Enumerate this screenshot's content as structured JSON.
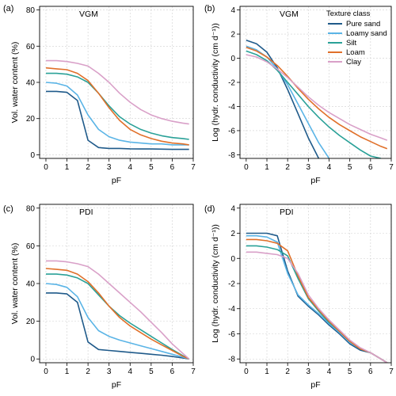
{
  "figure": {
    "legend_title": "Texture class",
    "legend_items": [
      {
        "label": "Pure sand",
        "color": "#1f5a8a"
      },
      {
        "label": "Loamy sand",
        "color": "#5ab4e6"
      },
      {
        "label": "Silt",
        "color": "#2aa198"
      },
      {
        "label": "Loam",
        "color": "#e0702a"
      },
      {
        "label": "Clay",
        "color": "#d9a0c8"
      }
    ]
  },
  "chart_data": [
    {
      "type": "line",
      "panel_label": "(a)",
      "title": "VGM",
      "xlabel": "pF",
      "ylabel": "Vol. water content (%)",
      "xlim": [
        -0.3,
        7.0
      ],
      "ylim": [
        -2,
        82
      ],
      "x_ticks": [
        0,
        1,
        2,
        3,
        4,
        5,
        6,
        7
      ],
      "y_ticks": [
        0,
        20,
        40,
        60,
        80
      ],
      "grid": true,
      "x": [
        0,
        0.5,
        1,
        1.5,
        2,
        2.5,
        3,
        3.5,
        4,
        4.5,
        5,
        5.5,
        6,
        6.5,
        6.8
      ],
      "series": [
        {
          "name": "Pure sand",
          "color": "#1f5a8a",
          "values": [
            35,
            35,
            34.5,
            30,
            8,
            4,
            3.5,
            3.5,
            3.3,
            3.2,
            3.2,
            3.1,
            3,
            3,
            3
          ]
        },
        {
          "name": "Loamy sand",
          "color": "#5ab4e6",
          "values": [
            40,
            39.5,
            38,
            33,
            22,
            14,
            10,
            8,
            7,
            6.5,
            6,
            6,
            5.5,
            5.5,
            5.5
          ]
        },
        {
          "name": "Silt",
          "color": "#2aa198",
          "values": [
            45,
            45,
            44.5,
            43,
            40,
            34,
            27,
            21,
            17,
            14,
            12,
            10.5,
            9.5,
            9,
            8.5
          ]
        },
        {
          "name": "Loam",
          "color": "#e0702a",
          "values": [
            48,
            47.5,
            47,
            45,
            41,
            34,
            26,
            19,
            14,
            11,
            9,
            7.5,
            6.5,
            6,
            5.5
          ]
        },
        {
          "name": "Clay",
          "color": "#d9a0c8",
          "values": [
            52,
            52,
            51.5,
            50.5,
            49,
            45,
            40,
            34,
            29,
            25,
            22,
            20,
            18.5,
            17.5,
            17
          ]
        }
      ]
    },
    {
      "type": "line",
      "panel_label": "(b)",
      "title": "VGM",
      "xlabel": "pF",
      "ylabel": "Log (hydr. conductivity (cm d⁻¹))",
      "xlim": [
        -0.3,
        7.0
      ],
      "ylim": [
        -8.3,
        4.3
      ],
      "x_ticks": [
        0,
        1,
        2,
        3,
        4,
        5,
        6,
        7
      ],
      "y_ticks": [
        4,
        2,
        0,
        -2,
        -4,
        -6,
        -8
      ],
      "grid": true,
      "x": [
        0,
        0.5,
        1,
        1.5,
        2,
        2.5,
        3,
        3.5,
        4,
        4.5,
        5,
        5.5,
        6,
        6.5,
        6.8
      ],
      "series": [
        {
          "name": "Pure sand",
          "color": "#1f5a8a",
          "values": [
            1.5,
            1.2,
            0.5,
            -0.8,
            -2.6,
            -4.6,
            -6.6,
            -8.3,
            null,
            null,
            null,
            null,
            null,
            null,
            null
          ]
        },
        {
          "name": "Loamy sand",
          "color": "#5ab4e6",
          "values": [
            1.0,
            0.7,
            0.1,
            -0.9,
            -2.2,
            -3.8,
            -5.4,
            -7.0,
            -8.3,
            null,
            null,
            null,
            null,
            null,
            null
          ]
        },
        {
          "name": "Silt",
          "color": "#2aa198",
          "values": [
            0.6,
            0.3,
            -0.2,
            -1.0,
            -2.0,
            -3.0,
            -4.0,
            -4.9,
            -5.7,
            -6.4,
            -7.0,
            -7.6,
            -8.1,
            -8.3,
            null
          ]
        },
        {
          "name": "Loam",
          "color": "#e0702a",
          "values": [
            0.9,
            0.6,
            0.1,
            -0.6,
            -1.5,
            -2.5,
            -3.4,
            -4.2,
            -4.9,
            -5.5,
            -6.0,
            -6.5,
            -6.9,
            -7.3,
            -7.5
          ]
        },
        {
          "name": "Clay",
          "color": "#d9a0c8",
          "values": [
            0.3,
            0.1,
            -0.3,
            -0.9,
            -1.6,
            -2.4,
            -3.2,
            -3.9,
            -4.5,
            -5.0,
            -5.5,
            -5.9,
            -6.3,
            -6.6,
            -6.8
          ]
        }
      ]
    },
    {
      "type": "line",
      "panel_label": "(c)",
      "title": "PDI",
      "xlabel": "pF",
      "ylabel": "Vol. water content (%)",
      "xlim": [
        -0.3,
        7.0
      ],
      "ylim": [
        -2,
        82
      ],
      "x_ticks": [
        0,
        1,
        2,
        3,
        4,
        5,
        6,
        7
      ],
      "y_ticks": [
        0,
        20,
        40,
        60,
        80
      ],
      "grid": true,
      "x": [
        0,
        0.5,
        1,
        1.5,
        2,
        2.5,
        3,
        3.5,
        4,
        4.5,
        5,
        5.5,
        6,
        6.5,
        6.8
      ],
      "series": [
        {
          "name": "Pure sand",
          "color": "#1f5a8a",
          "values": [
            35,
            35,
            34.5,
            30,
            9,
            5,
            4.5,
            4,
            3.5,
            3,
            2.5,
            2,
            1.3,
            0.5,
            0
          ]
        },
        {
          "name": "Loamy sand",
          "color": "#5ab4e6",
          "values": [
            40,
            39.5,
            38,
            33,
            22,
            15,
            12,
            10,
            8.5,
            7,
            5.5,
            4,
            2.5,
            1,
            0
          ]
        },
        {
          "name": "Silt",
          "color": "#2aa198",
          "values": [
            45,
            45,
            44.5,
            43,
            40,
            34,
            28,
            23,
            19,
            15.5,
            12,
            8.5,
            5,
            1.8,
            0
          ]
        },
        {
          "name": "Loam",
          "color": "#e0702a",
          "values": [
            48,
            47.5,
            47,
            45,
            41,
            35,
            28,
            22,
            17.5,
            14,
            10.5,
            7.5,
            4.5,
            1.5,
            0
          ]
        },
        {
          "name": "Clay",
          "color": "#d9a0c8",
          "values": [
            52,
            52,
            51.5,
            50.5,
            49,
            45,
            40,
            35,
            30,
            25,
            19.5,
            14,
            8,
            3,
            0
          ]
        }
      ]
    },
    {
      "type": "line",
      "panel_label": "(d)",
      "title": "PDI",
      "xlabel": "pF",
      "ylabel": "Log (hydr. conductivity (cm d⁻¹))",
      "xlim": [
        -0.3,
        7.0
      ],
      "ylim": [
        -8.3,
        4.3
      ],
      "x_ticks": [
        0,
        1,
        2,
        3,
        4,
        5,
        6,
        7
      ],
      "y_ticks": [
        4,
        2,
        0,
        -2,
        -4,
        -6,
        -8
      ],
      "grid": true,
      "x": [
        0,
        0.5,
        1,
        1.5,
        2,
        2.5,
        3,
        3.5,
        4,
        4.5,
        5,
        5.5,
        6,
        6.5,
        6.8
      ],
      "series": [
        {
          "name": "Pure sand",
          "color": "#1f5a8a",
          "values": [
            2.0,
            2.0,
            2.0,
            1.8,
            -1.0,
            -3.0,
            -3.8,
            -4.5,
            -5.3,
            -6.0,
            -6.8,
            -7.3,
            -7.5,
            -8.0,
            -8.3
          ]
        },
        {
          "name": "Loamy sand",
          "color": "#5ab4e6",
          "values": [
            1.8,
            1.8,
            1.7,
            1.3,
            -1.2,
            -2.9,
            -3.7,
            -4.4,
            -5.2,
            -5.9,
            -6.7,
            -7.2,
            -7.5,
            -8.0,
            -8.3
          ]
        },
        {
          "name": "Silt",
          "color": "#2aa198",
          "values": [
            1.0,
            1.0,
            0.9,
            0.7,
            0.2,
            -1.6,
            -3.2,
            -4.2,
            -5.1,
            -5.8,
            -6.6,
            -7.2,
            -7.5,
            -8.0,
            -8.3
          ]
        },
        {
          "name": "Loam",
          "color": "#e0702a",
          "values": [
            1.5,
            1.5,
            1.4,
            1.2,
            0.6,
            -1.4,
            -3.1,
            -4.1,
            -5.0,
            -5.8,
            -6.6,
            -7.2,
            -7.5,
            -8.0,
            -8.3
          ]
        },
        {
          "name": "Clay",
          "color": "#d9a0c8",
          "values": [
            0.5,
            0.5,
            0.4,
            0.3,
            0.0,
            -1.2,
            -2.9,
            -4.0,
            -4.9,
            -5.7,
            -6.5,
            -7.1,
            -7.5,
            -8.0,
            -8.3
          ]
        }
      ]
    }
  ]
}
